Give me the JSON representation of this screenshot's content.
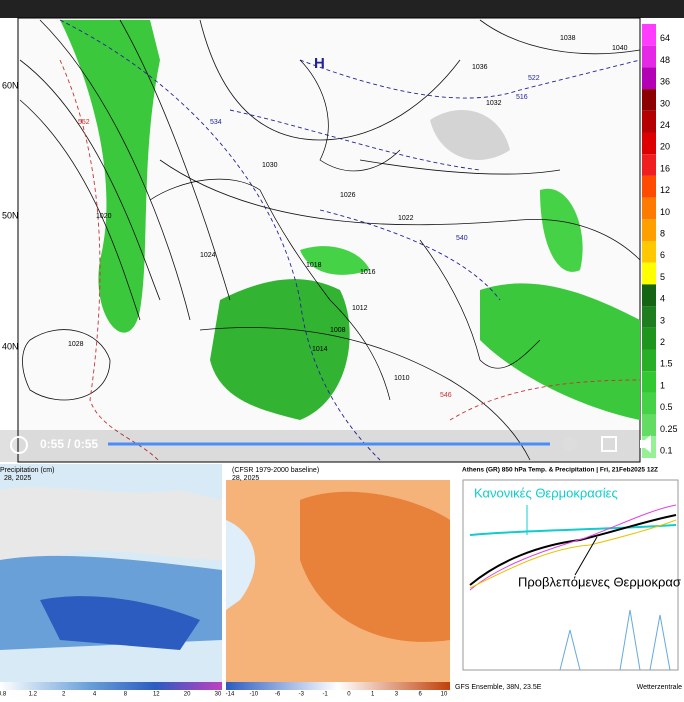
{
  "player": {
    "time": "0:55 / 0:55"
  },
  "map": {
    "lat_labels": [
      "60N",
      "50N",
      "40N"
    ],
    "high": "H",
    "isobars": [
      "1020",
      "1024",
      "1028",
      "1030",
      "1026",
      "1022",
      "1016",
      "1012",
      "1008",
      "1010",
      "1038",
      "1040",
      "1036",
      "1032",
      "1018",
      "1014"
    ],
    "heights": [
      "552",
      "534",
      "522",
      "516",
      "540",
      "546"
    ]
  },
  "colorbar": {
    "values": [
      64,
      48,
      36,
      30,
      24,
      20,
      16,
      12,
      10,
      8,
      6,
      5,
      4,
      3,
      2,
      1.5,
      1,
      0.5,
      0.25,
      0.1
    ],
    "colors": [
      "#ff3cff",
      "#e628e6",
      "#b400b4",
      "#8c0000",
      "#b40000",
      "#dc0000",
      "#f01e1e",
      "#ff4b00",
      "#ff7a00",
      "#ffa000",
      "#ffc800",
      "#ffff00",
      "#146414",
      "#1e7d1e",
      "#1e961e",
      "#28af28",
      "#32c832",
      "#46d246",
      "#64dc64",
      "#96f096"
    ]
  },
  "panels": [
    {
      "title": "Precipitation (cm)",
      "date": "28, 2025",
      "scale": [
        0.8,
        1.2,
        2,
        4,
        8,
        12,
        20,
        30
      ]
    },
    {
      "title": "(CFSR 1979-2000 baseline)",
      "date": "28, 2025",
      "scale": [
        -14,
        -10,
        -6,
        -3,
        -1,
        0,
        1,
        3,
        6,
        10
      ]
    },
    {
      "title": "Athens (GR)  850 hPa Temp. & Precipitation | Fri, 21Feb2025 12Z",
      "normal": "Κανονικές Θερμοκρασίες",
      "forecast": "Προβλεπόμενες Θερμοκρασ",
      "footer": "GFS Ensemble, 38N, 23.5E",
      "credit": "Wetterzentrale"
    }
  ]
}
